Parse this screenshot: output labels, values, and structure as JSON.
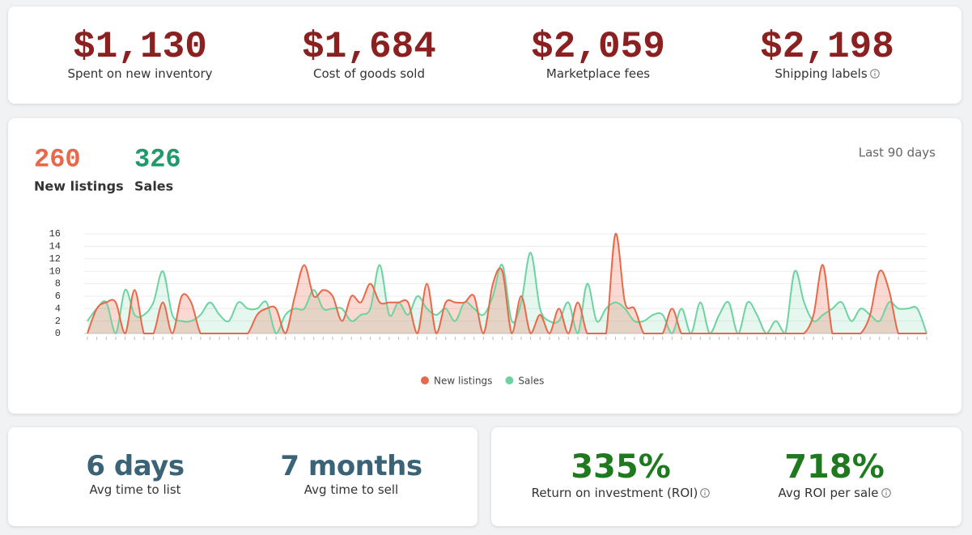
{
  "stats": [
    {
      "value": "$1,130",
      "label": "Spent on new inventory"
    },
    {
      "value": "$1,684",
      "label": "Cost of goods sold"
    },
    {
      "value": "$2,059",
      "label": "Marketplace fees"
    },
    {
      "value": "$2,198",
      "label": "Shipping labels"
    }
  ],
  "counters": [
    "260",
    "326"
  ],
  "period": "Last 90 days",
  "chart_data": {
    "type": "line",
    "categories": [
      null,
      null,
      null,
      null,
      null,
      null,
      null,
      null,
      null,
      null,
      null,
      null,
      null,
      null,
      null,
      null,
      null,
      null,
      null,
      null,
      null,
      null,
      null,
      null,
      null,
      null,
      null,
      null,
      null,
      null,
      null,
      null,
      null,
      null,
      null,
      null,
      null,
      null,
      null,
      null,
      null,
      null,
      null,
      null,
      null,
      null,
      null,
      null,
      null,
      null,
      null,
      null,
      null,
      null,
      null,
      null,
      null,
      null,
      null,
      null,
      null,
      null,
      null,
      null,
      null,
      null,
      null,
      null,
      null,
      null,
      null,
      null,
      null,
      null,
      null,
      null,
      null,
      null,
      null,
      null,
      null,
      null,
      null,
      null,
      null,
      null,
      null,
      null,
      null,
      null
    ],
    "series": [
      {
        "name": "New listings",
        "color": "#e8694a",
        "values": [
          0,
          4,
          5,
          5,
          0,
          7,
          0,
          0,
          5,
          0,
          6,
          5,
          0,
          0,
          0,
          0,
          0,
          0,
          3,
          4,
          4,
          0,
          6,
          11,
          6,
          7,
          6,
          2,
          6,
          5,
          8,
          5,
          5,
          5,
          5,
          0,
          8,
          0,
          5,
          5,
          5,
          6,
          0,
          8,
          10,
          0,
          6,
          0,
          3,
          0,
          4,
          0,
          5,
          0,
          0,
          0,
          16,
          5,
          4,
          0,
          0,
          0,
          4,
          0,
          0,
          0,
          0,
          0,
          0,
          0,
          0,
          0,
          0,
          0,
          0,
          0,
          0,
          3,
          11,
          0,
          0,
          0,
          0,
          3,
          10,
          7,
          0,
          0,
          0,
          0
        ]
      },
      {
        "name": "Sales",
        "color": "#6dd3a0",
        "values": [
          2,
          4,
          5,
          0,
          7,
          3,
          3,
          5,
          10,
          3,
          2,
          2,
          3,
          5,
          3,
          2,
          5,
          4,
          4,
          5,
          0,
          3,
          4,
          4,
          7,
          4,
          4,
          4,
          2,
          3,
          4,
          11,
          3,
          5,
          3,
          6,
          4,
          3,
          4,
          2,
          5,
          4,
          3,
          6,
          11,
          2,
          5,
          13,
          4,
          2,
          2,
          5,
          0,
          8,
          2,
          4,
          5,
          4,
          2,
          2,
          3,
          3,
          0,
          4,
          0,
          5,
          0,
          3,
          5,
          0,
          5,
          3,
          0,
          2,
          0,
          10,
          5,
          2,
          3,
          4,
          5,
          2,
          4,
          3,
          2,
          5,
          4,
          4,
          4,
          0
        ]
      }
    ],
    "ylim": [
      0,
      16
    ],
    "yticks": [
      0,
      2,
      4,
      6,
      8,
      10,
      12,
      14,
      16
    ],
    "grid": true,
    "legend": "bottom"
  },
  "bottom_left": [
    {
      "value": "6 days",
      "label": "Avg time to list"
    },
    {
      "value": "7 months",
      "label": "Avg time to sell"
    }
  ],
  "bottom_right": [
    {
      "value": "335%",
      "label": "Return on investment (ROI)"
    },
    {
      "value": "718%",
      "label": "Avg ROI per sale"
    }
  ]
}
